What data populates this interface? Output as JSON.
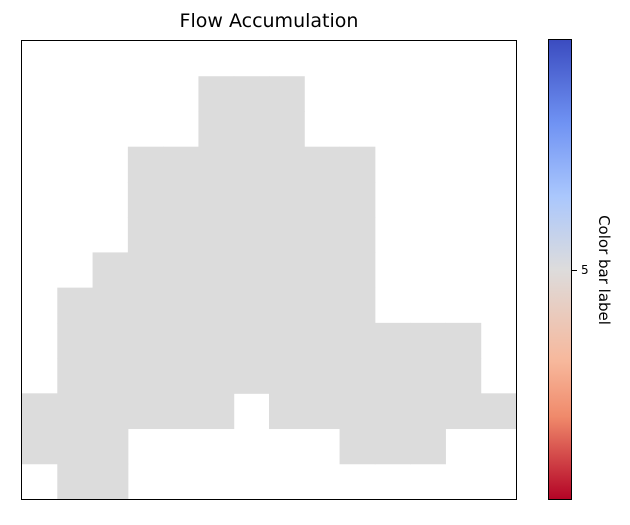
{
  "chart_data": {
    "type": "heatmap",
    "title": "Flow Accumulation",
    "colorbar": {
      "label": "Color bar label",
      "ticks": [
        5
      ],
      "colormap": "coolwarm",
      "range": [
        0,
        10
      ]
    },
    "cell_color": "#dcdcdc",
    "rows": 13,
    "cols": 14,
    "mask": [
      [
        0,
        0,
        0,
        0,
        0,
        0,
        0,
        0,
        0,
        0,
        0,
        0,
        0,
        0
      ],
      [
        0,
        0,
        0,
        0,
        0,
        1,
        1,
        1,
        0,
        0,
        0,
        0,
        0,
        0
      ],
      [
        0,
        0,
        0,
        0,
        0,
        1,
        1,
        1,
        0,
        0,
        0,
        0,
        0,
        0
      ],
      [
        0,
        0,
        0,
        1,
        1,
        1,
        1,
        1,
        1,
        1,
        0,
        0,
        0,
        0
      ],
      [
        0,
        0,
        0,
        1,
        1,
        1,
        1,
        1,
        1,
        1,
        0,
        0,
        0,
        0
      ],
      [
        0,
        0,
        0,
        1,
        1,
        1,
        1,
        1,
        1,
        1,
        0,
        0,
        0,
        0
      ],
      [
        0,
        0,
        1,
        1,
        1,
        1,
        1,
        1,
        1,
        1,
        0,
        0,
        0,
        0
      ],
      [
        0,
        1,
        1,
        1,
        1,
        1,
        1,
        1,
        1,
        1,
        0,
        0,
        0,
        0
      ],
      [
        0,
        1,
        1,
        1,
        1,
        1,
        1,
        1,
        1,
        1,
        1,
        1,
        1,
        0
      ],
      [
        0,
        1,
        1,
        1,
        1,
        1,
        1,
        1,
        1,
        1,
        1,
        1,
        1,
        0
      ],
      [
        1,
        1,
        1,
        1,
        1,
        1,
        0,
        1,
        1,
        1,
        1,
        1,
        1,
        1
      ],
      [
        1,
        1,
        1,
        0,
        0,
        0,
        0,
        0,
        0,
        1,
        1,
        1,
        0,
        0
      ],
      [
        0,
        1,
        1,
        0,
        0,
        0,
        0,
        0,
        0,
        0,
        0,
        0,
        0,
        0
      ]
    ],
    "grid": false
  }
}
